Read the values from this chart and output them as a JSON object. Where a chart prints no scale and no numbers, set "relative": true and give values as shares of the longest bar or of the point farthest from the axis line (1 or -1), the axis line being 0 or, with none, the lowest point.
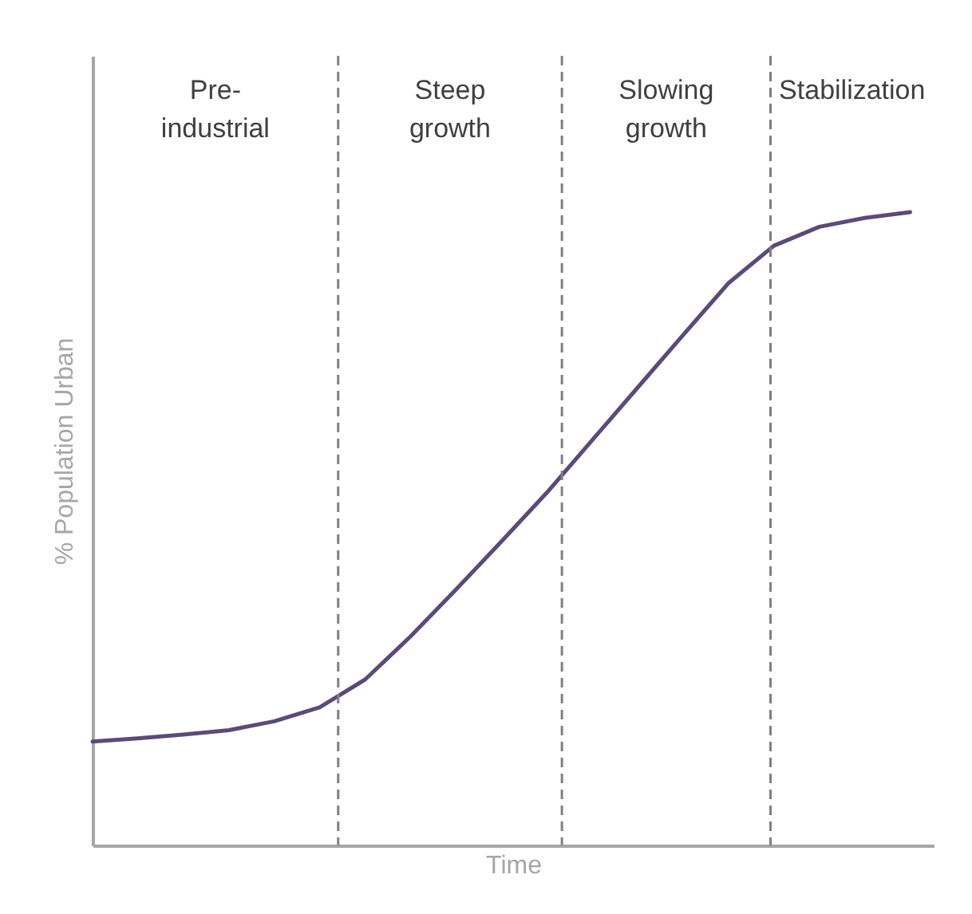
{
  "chart_data": {
    "type": "line",
    "relative": true,
    "xlabel": "Time",
    "ylabel": "% Population Urban",
    "tick_labels": false,
    "grid": false,
    "marker": "none",
    "line_style": "solid",
    "categories": [
      null,
      null,
      null,
      null,
      null,
      null,
      null,
      null,
      null,
      null,
      null,
      null,
      null,
      null,
      null,
      null,
      null,
      null,
      null
    ],
    "series": [
      {
        "color": "#5b4a7a",
        "values": [
          0.164,
          0.169,
          0.175,
          0.182,
          0.196,
          0.218,
          0.262,
          0.33,
          0.404,
          0.48,
          0.557,
          0.64,
          0.723,
          0.806,
          0.888,
          0.947,
          0.977,
          0.991,
          1.0
        ]
      }
    ],
    "annotations": [
      "Pre- industrial",
      "Steep growth",
      "Slowing growth",
      "Stabilization"
    ]
  }
}
